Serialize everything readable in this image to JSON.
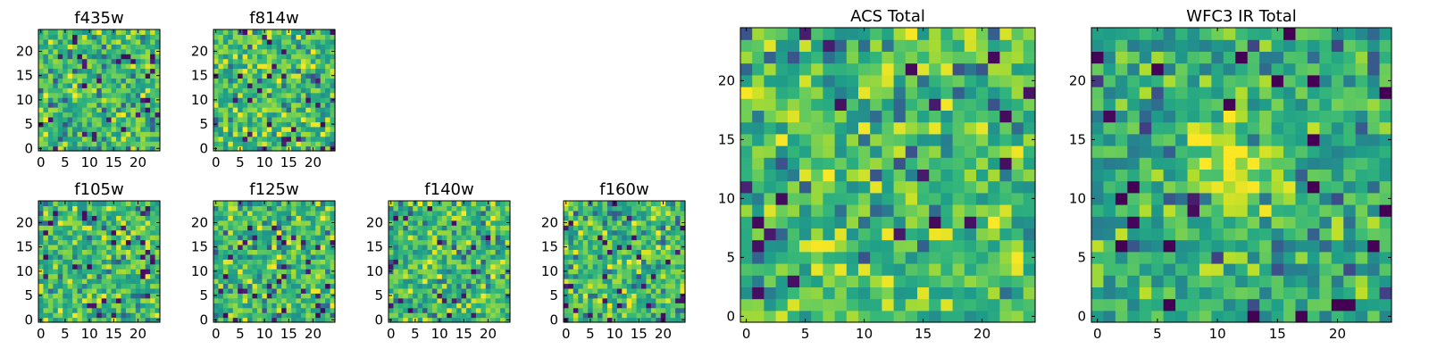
{
  "chart_data": [
    {
      "type": "heatmap",
      "title": "f435w",
      "xticks": [
        "0",
        "5",
        "10",
        "15",
        "20"
      ],
      "yticks": [
        "0",
        "5",
        "10",
        "15",
        "20"
      ],
      "xlim": [
        0,
        25
      ],
      "ylim": [
        0,
        25
      ],
      "colormap": "viridis",
      "grid": false,
      "seed": 11
    },
    {
      "type": "heatmap",
      "title": "f814w",
      "xticks": [
        "0",
        "5",
        "10",
        "15",
        "20"
      ],
      "yticks": [
        "0",
        "5",
        "10",
        "15",
        "20"
      ],
      "xlim": [
        0,
        25
      ],
      "ylim": [
        0,
        25
      ],
      "colormap": "viridis",
      "grid": false,
      "seed": 23
    },
    {
      "type": "heatmap",
      "title": "f105w",
      "xticks": [
        "0",
        "5",
        "10",
        "15",
        "20"
      ],
      "yticks": [
        "0",
        "5",
        "10",
        "15",
        "20"
      ],
      "xlim": [
        0,
        25
      ],
      "ylim": [
        0,
        25
      ],
      "colormap": "viridis",
      "grid": false,
      "seed": 37
    },
    {
      "type": "heatmap",
      "title": "f125w",
      "xticks": [
        "0",
        "5",
        "10",
        "15",
        "20"
      ],
      "yticks": [
        "0",
        "5",
        "10",
        "15",
        "20"
      ],
      "xlim": [
        0,
        25
      ],
      "ylim": [
        0,
        25
      ],
      "colormap": "viridis",
      "grid": false,
      "seed": 41
    },
    {
      "type": "heatmap",
      "title": "f140w",
      "xticks": [
        "0",
        "5",
        "10",
        "15",
        "20"
      ],
      "yticks": [
        "0",
        "5",
        "10",
        "15",
        "20"
      ],
      "xlim": [
        0,
        25
      ],
      "ylim": [
        0,
        25
      ],
      "colormap": "viridis",
      "grid": false,
      "seed": 53
    },
    {
      "type": "heatmap",
      "title": "f160w",
      "xticks": [
        "0",
        "5",
        "10",
        "15",
        "20"
      ],
      "yticks": [
        "0",
        "5",
        "10",
        "15",
        "20"
      ],
      "xlim": [
        0,
        25
      ],
      "ylim": [
        0,
        25
      ],
      "colormap": "viridis",
      "grid": false,
      "seed": 67
    },
    {
      "type": "heatmap",
      "title": "ACS Total",
      "xticks": [
        "0",
        "5",
        "10",
        "15",
        "20"
      ],
      "yticks": [
        "0",
        "5",
        "10",
        "15",
        "20"
      ],
      "xlim": [
        0,
        25
      ],
      "ylim": [
        0,
        25
      ],
      "colormap": "viridis",
      "grid": false,
      "seed": 79
    },
    {
      "type": "heatmap",
      "title": "WFC3 IR Total",
      "xticks": [
        "0",
        "5",
        "10",
        "15",
        "20"
      ],
      "yticks": [
        "0",
        "5",
        "10",
        "15",
        "20"
      ],
      "xlim": [
        0,
        25
      ],
      "ylim": [
        0,
        25
      ],
      "colormap": "viridis",
      "grid": false,
      "seed": 97,
      "central_source": true
    }
  ]
}
